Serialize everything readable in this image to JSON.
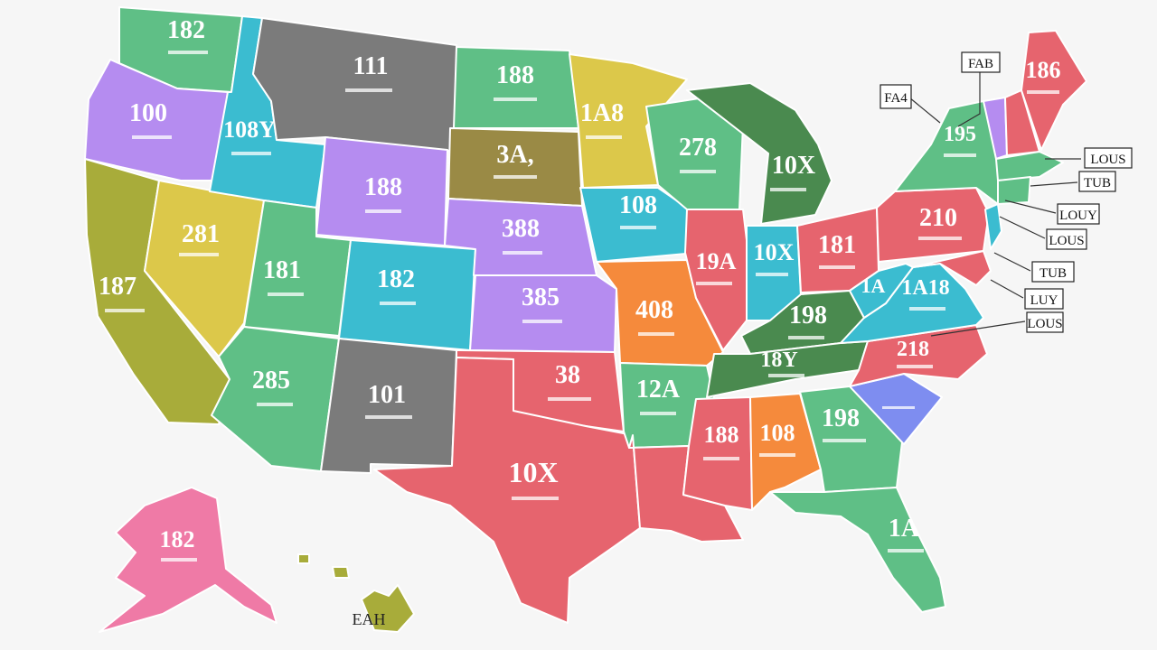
{
  "colors": {
    "green": "#5fbf86",
    "darkgreen": "#4a8a4f",
    "teal": "#3bbcd0",
    "purple": "#b58cf0",
    "gray": "#7b7b7b",
    "olive": "#a8ac3a",
    "yellow": "#dcc84a",
    "brown": "#9a8a45",
    "red": "#e6646e",
    "orange": "#f58a3c",
    "blue": "#7e8df0",
    "pink": "#ef7aa6",
    "background": "#f6f6f6"
  },
  "states": {
    "wa": "182",
    "or": "100",
    "ca": "187",
    "nv": "281",
    "id": "108Y",
    "mt": "111",
    "wy": "188",
    "ut": "181",
    "az": "285",
    "co": "182",
    "nm": "101",
    "nd": "188",
    "sd": "3A,",
    "ne": "388",
    "ks": "385",
    "ok": "38",
    "tx": "10X",
    "mn": "1A8",
    "ia": "108",
    "mo": "408",
    "ar": "12A",
    "la": "",
    "wi": "278",
    "il": "19A",
    "mi": "10X",
    "in": "10X",
    "oh": "181",
    "ky": "198",
    "tn": "18Y",
    "ms": "188",
    "al": "108",
    "ga": "198",
    "fl": "1A",
    "sc": "",
    "nc": "218",
    "va": "1A18",
    "wv": "1A",
    "pa": "210",
    "ny": "195",
    "me": "186",
    "ak": "182",
    "hi": "EAH"
  },
  "callouts": [
    "FAB",
    "FA4",
    "LOUS",
    "TUB",
    "LOUY",
    "LOUS",
    "TUB",
    "LUY",
    "LOUS"
  ]
}
